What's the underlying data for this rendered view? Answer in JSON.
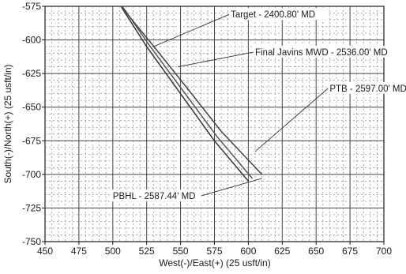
{
  "chart_data": {
    "type": "line",
    "xlabel": "West(-)/East(+) (25 usft/in)",
    "ylabel": "South(-)/North(+) (25 usft/in)",
    "xlim": [
      450,
      700
    ],
    "ylim": [
      -750,
      -575
    ],
    "xticks": [
      450,
      475,
      500,
      525,
      550,
      575,
      600,
      625,
      650,
      675,
      700
    ],
    "yticks": [
      -575,
      -600,
      -625,
      -650,
      -675,
      -700,
      -725,
      -750
    ],
    "grid": true,
    "series": [
      {
        "color": "#333333",
        "x": [
          506,
          525,
          550,
          575,
          600
        ],
        "y": [
          -575,
          -605,
          -640,
          -675,
          -705
        ]
      },
      {
        "color": "#555555",
        "x": [
          507,
          527,
          552,
          577,
          603
        ],
        "y": [
          -575,
          -604,
          -638,
          -672,
          -703
        ]
      },
      {
        "color": "#444444",
        "x": [
          506,
          528,
          555,
          580,
          610
        ],
        "y": [
          -575,
          -602,
          -636,
          -668,
          -700
        ]
      }
    ],
    "annotations": [
      {
        "text": "Target - 2400.80' MD",
        "x": 530,
        "y": -605,
        "label_x": 587,
        "label_y": -581
      },
      {
        "text": "Final Javins MWD - 2536.00' MD",
        "x": 548,
        "y": -620,
        "label_x": 605,
        "label_y": -609
      },
      {
        "text": "PTB - 2597.00' MD",
        "x": 605,
        "y": -683,
        "label_x": 660,
        "label_y": -636
      },
      {
        "text": "PBHL - 2587.44' MD",
        "x": 610,
        "y": -703,
        "label_x": 500,
        "label_y": -716
      }
    ]
  }
}
